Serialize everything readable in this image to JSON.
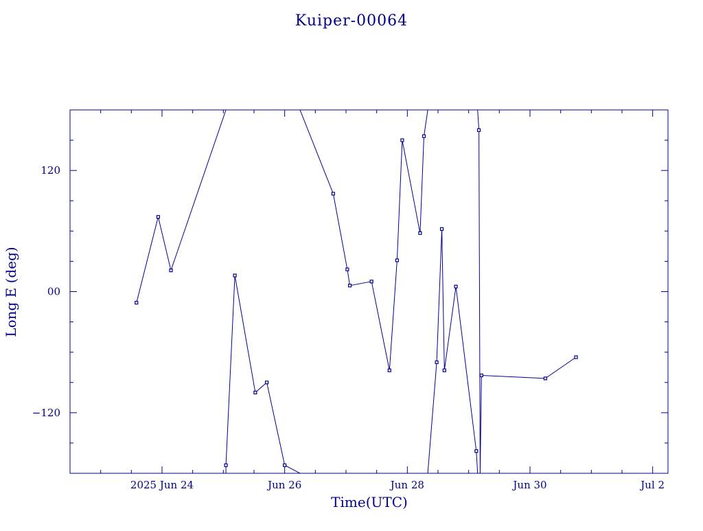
{
  "chart_data": {
    "type": "line",
    "title": "Kuiper-00064",
    "xlabel": "Time(UTC)",
    "ylabel": "Long E (deg)",
    "color": "#00008b",
    "x_tick_labels": [
      {
        "x": "2025-06-24T00:00Z",
        "label": "2025 Jun 24"
      },
      {
        "x": "2025-06-26T00:00Z",
        "label": "Jun 26"
      },
      {
        "x": "2025-06-28T00:00Z",
        "label": "Jun 28"
      },
      {
        "x": "2025-06-30T00:00Z",
        "label": "Jun 30"
      },
      {
        "x": "2025-07-02T00:00Z",
        "label": "Jul  2"
      }
    ],
    "y_tick_labels": [
      {
        "y": 120,
        "label": "120"
      },
      {
        "y": 0,
        "label": "00"
      },
      {
        "y": -120,
        "label": "−120"
      }
    ],
    "xlim": [
      "2025-06-22T12:00Z",
      "2025-07-02T06:00Z"
    ],
    "ylim": [
      -180,
      180
    ],
    "x_minor_step_hours": 12,
    "y_minor_step": 30,
    "series": [
      {
        "points": [
          {
            "x": "2025-06-23T14:00Z",
            "y": -11
          },
          {
            "x": "2025-06-23T22:30Z",
            "y": 74
          },
          {
            "x": "2025-06-24T03:30Z",
            "y": 21
          },
          {
            "x": "2025-06-25T01:00Z",
            "y": 180,
            "marker": false
          },
          {
            "x": "2025-06-25T01:00Z",
            "y": -180,
            "marker": false
          },
          {
            "x": "2025-06-25T01:00Z",
            "y": -172
          },
          {
            "x": "2025-06-25T04:30Z",
            "y": 16
          },
          {
            "x": "2025-06-25T12:30Z",
            "y": -100
          },
          {
            "x": "2025-06-25T17:00Z",
            "y": -90
          },
          {
            "x": "2025-06-26T00:00Z",
            "y": -172
          },
          {
            "x": "2025-06-26T06:00Z",
            "y": -180,
            "marker": false
          },
          {
            "x": "2025-06-26T06:00Z",
            "y": 180,
            "marker": false
          },
          {
            "x": "2025-06-26T19:00Z",
            "y": 97
          },
          {
            "x": "2025-06-27T00:30Z",
            "y": 22
          },
          {
            "x": "2025-06-27T01:30Z",
            "y": 6
          },
          {
            "x": "2025-06-27T10:00Z",
            "y": 10
          },
          {
            "x": "2025-06-27T17:00Z",
            "y": -78
          },
          {
            "x": "2025-06-27T20:00Z",
            "y": 31
          },
          {
            "x": "2025-06-27T22:00Z",
            "y": 150
          },
          {
            "x": "2025-06-28T05:00Z",
            "y": 58
          },
          {
            "x": "2025-06-28T06:30Z",
            "y": 154
          },
          {
            "x": "2025-06-28T08:00Z",
            "y": 180,
            "marker": false
          },
          {
            "x": "2025-06-28T08:00Z",
            "y": -180,
            "marker": false
          },
          {
            "x": "2025-06-28T11:30Z",
            "y": -70
          },
          {
            "x": "2025-06-28T13:30Z",
            "y": 62
          },
          {
            "x": "2025-06-28T14:30Z",
            "y": -78
          },
          {
            "x": "2025-06-28T19:00Z",
            "y": 5
          },
          {
            "x": "2025-06-29T03:00Z",
            "y": -158
          },
          {
            "x": "2025-06-29T03:30Z",
            "y": -180,
            "marker": false
          },
          {
            "x": "2025-06-29T03:30Z",
            "y": 180,
            "marker": false
          },
          {
            "x": "2025-06-29T04:00Z",
            "y": 160
          },
          {
            "x": "2025-06-29T04:30Z",
            "y": -180,
            "marker": false
          },
          {
            "x": "2025-06-29T04:30Z",
            "y": 180,
            "marker": false
          },
          {
            "x": "2025-06-29T04:30Z",
            "y": -180,
            "marker": false
          },
          {
            "x": "2025-06-29T05:00Z",
            "y": -83
          },
          {
            "x": "2025-06-30T06:00Z",
            "y": -86
          },
          {
            "x": "2025-06-30T18:00Z",
            "y": -65
          }
        ]
      }
    ]
  }
}
